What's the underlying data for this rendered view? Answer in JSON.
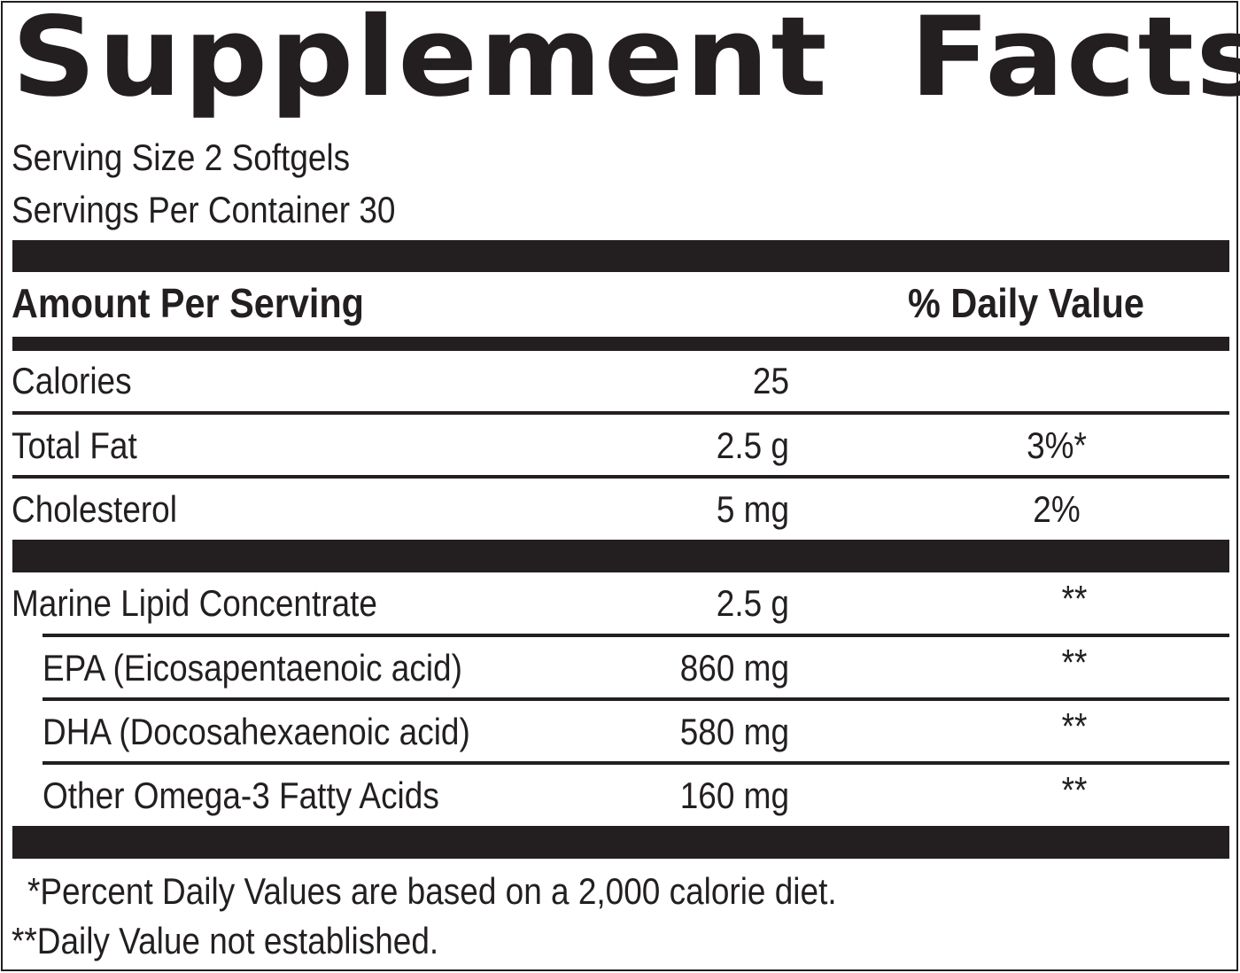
{
  "title": "Supplement Facts",
  "serving_size": "Serving Size 2 Softgels",
  "servings_per_container": "Servings Per Container 30",
  "header": {
    "amount_per_serving": "Amount Per Serving",
    "daily_value": "% Daily Value"
  },
  "nutrients": [
    {
      "name": "Calories",
      "amount": "25",
      "dv": ""
    },
    {
      "name": "Total Fat",
      "amount": "2.5 g",
      "dv": "3%*"
    },
    {
      "name": "Cholesterol",
      "amount": "5 mg",
      "dv": "2%"
    }
  ],
  "ingredients": [
    {
      "name": "Marine Lipid Concentrate",
      "amount": "2.5 g",
      "dv": "**"
    },
    {
      "name": "EPA (Eicosapentaenoic acid)",
      "amount": "860 mg",
      "dv": "**"
    },
    {
      "name": "DHA (Docosahexaenoic acid)",
      "amount": "580 mg",
      "dv": "**"
    },
    {
      "name": "Other Omega-3 Fatty Acids",
      "amount": "160 mg",
      "dv": "**"
    }
  ],
  "footnotes": [
    "*Percent Daily Values are based on a 2,000 calorie diet.",
    "**Daily Value not established."
  ]
}
